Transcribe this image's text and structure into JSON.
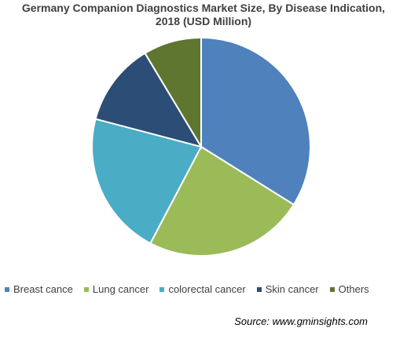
{
  "chart_data": {
    "type": "pie",
    "title_lines": [
      "Germany Companion Diagnostics Market Size, By Disease Indication,",
      "2018 (USD Million)"
    ],
    "labels": [
      "Breast cance",
      "Lung cancer",
      "colorectal cancer",
      "Skin cancer",
      "Others"
    ],
    "values": [
      33.9,
      23.8,
      21.4,
      12.3,
      8.6
    ],
    "value_unit": "percent",
    "colors": [
      "#4f81bd",
      "#9bbb59",
      "#4bacc6",
      "#2c4d75",
      "#5e7630"
    ],
    "start_angle_deg": 0,
    "direction": "clockwise",
    "legend_position": "bottom"
  },
  "source": "Source: www.gminsights.com"
}
